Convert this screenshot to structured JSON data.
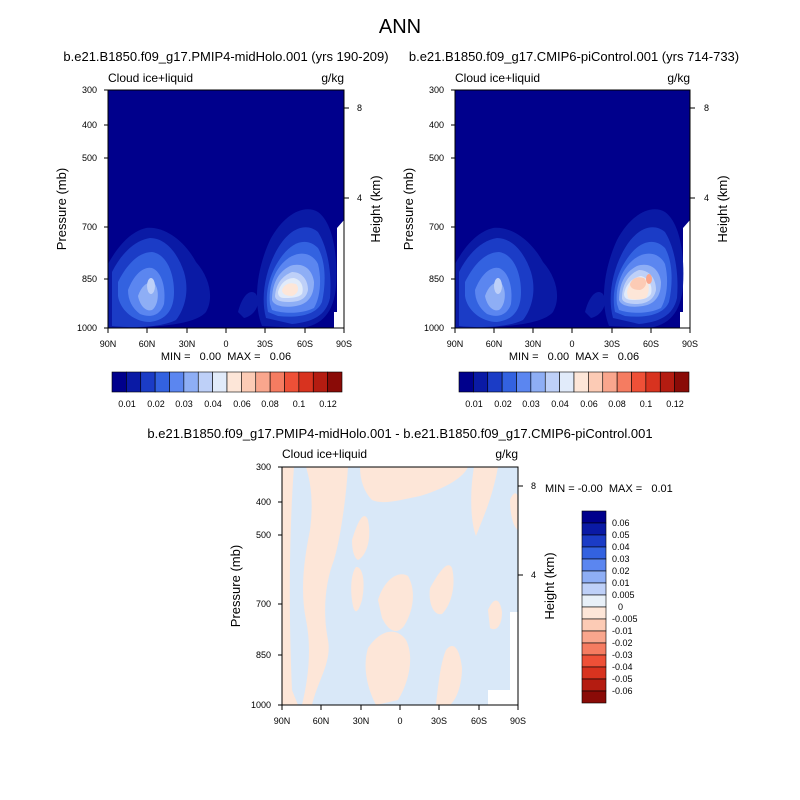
{
  "page_title": "ANN",
  "colors": {
    "background": "#ffffff",
    "missing": "#ffffff",
    "axis": "#000000"
  },
  "colorbars": {
    "mean": {
      "colors": [
        "#00008c",
        "#0a1aa5",
        "#1b3cc6",
        "#3362e0",
        "#5b86f0",
        "#8eaef5",
        "#bed0f8",
        "#e1ebfa",
        "#fde6d8",
        "#fccbb5",
        "#f9a68d",
        "#f57c61",
        "#ee5037",
        "#d8331f",
        "#b41c11",
        "#8a0b07"
      ],
      "labels": [
        "0.01",
        "0.02",
        "0.03",
        "0.04",
        "0.06",
        "0.08",
        "0.1",
        "0.12"
      ]
    },
    "diff": {
      "colors": [
        "#00008c",
        "#0a1aa5",
        "#1b3cc6",
        "#3362e0",
        "#5b86f0",
        "#8eaef5",
        "#bed0f8",
        "#e8f0f8",
        "#fde6d8",
        "#fccbb5",
        "#f9a68d",
        "#f57c61",
        "#ee5037",
        "#d8331f",
        "#b41c11",
        "#8a0b07"
      ],
      "labels": [
        "0.06",
        "0.05",
        "0.04",
        "0.03",
        "0.02",
        "0.01",
        "0.005",
        "0",
        "-0.005",
        "-0.01",
        "-0.02",
        "-0.03",
        "-0.04",
        "-0.05",
        "-0.06"
      ]
    }
  },
  "chart_data": [
    {
      "type": "heatmap",
      "title": "b.e21.B1850.f09_g17.PMIP4-midHolo.001 (yrs 190-209)",
      "variable": "Cloud ice+liquid",
      "units": "g/kg",
      "xlabel": "",
      "ylabel": "Pressure (mb)",
      "ylabel_right": "Height (km)",
      "x_ticks": [
        "90N",
        "60N",
        "30N",
        "0",
        "30S",
        "60S",
        "90S"
      ],
      "y_ticks": [
        "300",
        "400",
        "500",
        "700",
        "850",
        "1000"
      ],
      "y_ticks_right": [
        "8",
        "4"
      ],
      "y_scale": "log",
      "ylim": [
        1000,
        300
      ],
      "xlim": [
        "90N",
        "90S"
      ],
      "stats": "MIN =   0.00  MAX =   0.06",
      "min": 0.0,
      "max": 0.06
    },
    {
      "type": "heatmap",
      "title": "b.e21.B1850.f09_g17.CMIP6-piControl.001 (yrs 714-733)",
      "variable": "Cloud ice+liquid",
      "units": "g/kg",
      "xlabel": "",
      "ylabel": "Pressure (mb)",
      "ylabel_right": "Height (km)",
      "x_ticks": [
        "90N",
        "60N",
        "30N",
        "0",
        "30S",
        "60S",
        "90S"
      ],
      "y_ticks": [
        "300",
        "400",
        "500",
        "700",
        "850",
        "1000"
      ],
      "y_ticks_right": [
        "8",
        "4"
      ],
      "y_scale": "log",
      "ylim": [
        1000,
        300
      ],
      "xlim": [
        "90N",
        "90S"
      ],
      "stats": "MIN =   0.00  MAX =   0.06",
      "min": 0.0,
      "max": 0.06
    },
    {
      "type": "heatmap",
      "title": "b.e21.B1850.f09_g17.PMIP4-midHolo.001 - b.e21.B1850.f09_g17.CMIP6-piControl.001",
      "variable": "Cloud ice+liquid",
      "units": "g/kg",
      "xlabel": "",
      "ylabel": "Pressure (mb)",
      "ylabel_right": "Height (km)",
      "x_ticks": [
        "90N",
        "60N",
        "30N",
        "0",
        "30S",
        "60S",
        "90S"
      ],
      "y_ticks": [
        "300",
        "400",
        "500",
        "700",
        "850",
        "1000"
      ],
      "y_ticks_right": [
        "8",
        "4"
      ],
      "y_scale": "log",
      "ylim": [
        1000,
        300
      ],
      "xlim": [
        "90N",
        "90S"
      ],
      "stats": "MIN = -0.00  MAX =   0.01",
      "min": -0.0,
      "max": 0.01
    }
  ]
}
